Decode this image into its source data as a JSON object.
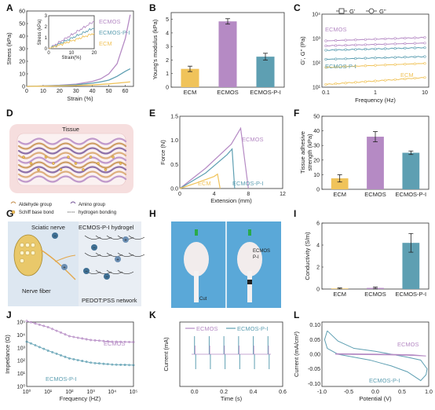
{
  "colors": {
    "ecm": "#f0c35a",
    "ecmos": "#b58ac4",
    "ecmospi": "#5e9fb2",
    "ecmos_light": "#c9a6d4",
    "ecmospi_light": "#7bb6c6"
  },
  "panels": {
    "A": {
      "label": "A"
    },
    "B": {
      "label": "B"
    },
    "C": {
      "label": "C"
    },
    "D": {
      "label": "D"
    },
    "E": {
      "label": "E"
    },
    "F": {
      "label": "F"
    },
    "G": {
      "label": "G"
    },
    "H": {
      "label": "H"
    },
    "I": {
      "label": "I"
    },
    "J": {
      "label": "J"
    },
    "K": {
      "label": "K"
    },
    "L": {
      "label": "L"
    }
  },
  "chart_data": [
    {
      "id": "A",
      "type": "line",
      "xlabel": "Strain (%)",
      "ylabel": "Stress (kPa)",
      "xlim": [
        0,
        65
      ],
      "ylim": [
        0,
        60
      ],
      "xticks": [
        0,
        10,
        20,
        30,
        40,
        50,
        60
      ],
      "yticks": [
        0,
        10,
        20,
        30,
        40,
        50,
        60
      ],
      "series": [
        {
          "name": "ECMOS",
          "x": [
            0,
            10,
            20,
            30,
            40,
            45,
            50,
            55,
            60,
            63
          ],
          "y": [
            0,
            0.4,
            0.9,
            1.8,
            4,
            6,
            10,
            18,
            38,
            57
          ]
        },
        {
          "name": "ECMOS-P-I",
          "x": [
            0,
            10,
            20,
            30,
            40,
            45,
            50,
            55,
            60,
            63
          ],
          "y": [
            0,
            0.3,
            0.7,
            1.3,
            2.6,
            3.6,
            5,
            8,
            12,
            14
          ]
        },
        {
          "name": "ECM",
          "x": [
            0,
            10,
            20,
            30,
            40,
            45,
            50,
            55,
            60,
            63
          ],
          "y": [
            0,
            0.2,
            0.4,
            0.7,
            1.2,
            1.6,
            2.0,
            2.6,
            3.2,
            3.6
          ]
        }
      ],
      "inset": {
        "xlabel": "Strain(%)",
        "ylabel": "Stress (kPa)",
        "xlim": [
          0,
          20
        ],
        "ylim": [
          0,
          3
        ],
        "xticks": [
          0,
          10,
          20
        ],
        "yticks": [
          0,
          1,
          2,
          3
        ],
        "series": [
          {
            "name": "ECMOS",
            "x": [
              0,
              5,
              10,
              15,
              20
            ],
            "y": [
              0,
              0.6,
              1.25,
              1.9,
              2.5
            ]
          },
          {
            "name": "ECMOS-P-I",
            "x": [
              0,
              5,
              10,
              15,
              20
            ],
            "y": [
              0,
              0.45,
              0.95,
              1.45,
              1.9
            ]
          },
          {
            "name": "ECM",
            "x": [
              0,
              5,
              10,
              15,
              20
            ],
            "y": [
              0,
              0.35,
              0.7,
              1.05,
              1.4
            ]
          }
        ]
      },
      "annotations": [
        "ECMOS",
        "ECMOS-P-I",
        "ECM"
      ]
    },
    {
      "id": "B",
      "type": "bar",
      "ylabel": "Young's modulus (kPa)",
      "categories": [
        "ECM",
        "ECMOS",
        "ECMOS-P-I"
      ],
      "values": [
        1.35,
        4.85,
        2.25
      ],
      "errors": [
        0.2,
        0.2,
        0.25
      ],
      "ylim": [
        0,
        5.5
      ],
      "yticks": [
        0,
        1,
        2,
        3,
        4,
        5
      ]
    },
    {
      "id": "C",
      "type": "line",
      "xlabel": "Frequency (Hz)",
      "ylabel": "G', G'' (Pa)",
      "log_x": true,
      "log_y": true,
      "xlim": [
        0.1,
        10
      ],
      "ylim": [
        10,
        10000
      ],
      "xtick_labels": [
        "0.1",
        "1",
        "10"
      ],
      "ytick_labels": [
        "10¹",
        "10²",
        "10³",
        "10⁴"
      ],
      "legend": [
        "G'",
        "G''"
      ],
      "series": [
        {
          "name": "ECMOS",
          "x": [
            0.1,
            1,
            10
          ],
          "y": [
            800,
            900,
            1100
          ]
        },
        {
          "name": "ECMOS",
          "x": [
            0.1,
            1,
            10
          ],
          "y": [
            500,
            560,
            650
          ]
        },
        {
          "name": "ECMOS-P-I",
          "x": [
            0.1,
            1,
            10
          ],
          "y": [
            330,
            370,
            420
          ]
        },
        {
          "name": "ECMOS-P-I",
          "x": [
            0.1,
            1,
            10
          ],
          "y": [
            140,
            160,
            180
          ]
        },
        {
          "name": "ECM",
          "x": [
            0.1,
            1,
            10
          ],
          "y": [
            65,
            80,
            95
          ]
        },
        {
          "name": "ECM",
          "x": [
            0.1,
            1,
            10
          ],
          "y": [
            13,
            18,
            25
          ]
        }
      ],
      "annotations": [
        "ECMOS",
        "ECMOS-P-I",
        "ECM"
      ]
    },
    {
      "id": "E",
      "type": "line",
      "xlabel": "Extension (mm)",
      "ylabel": "Force (N)",
      "xlim": [
        0,
        12
      ],
      "ylim": [
        0,
        1.5
      ],
      "xticks": [
        0,
        4,
        8,
        12
      ],
      "yticks": [
        0.0,
        0.5,
        1.0,
        1.5
      ],
      "series": [
        {
          "name": "ECMOS",
          "x": [
            0,
            3,
            6,
            7.1,
            7.6,
            8.0
          ],
          "y": [
            0,
            0.42,
            0.92,
            1.25,
            0.55,
            0
          ]
        },
        {
          "name": "ECMOS-P-I",
          "x": [
            0,
            3,
            5.5,
            6.1,
            6.4
          ],
          "y": [
            0,
            0.32,
            0.7,
            0.82,
            0
          ]
        },
        {
          "name": "ECM",
          "x": [
            0,
            2,
            4,
            4.4,
            4.7
          ],
          "y": [
            0,
            0.12,
            0.25,
            0.3,
            0
          ]
        }
      ],
      "annotations": [
        "ECMOS",
        "ECMOS-P-I",
        "ECM"
      ]
    },
    {
      "id": "F",
      "type": "bar",
      "ylabel": "Tissue adhesive strength (kPa)",
      "categories": [
        "ECM",
        "ECMOS",
        "ECMOS-P-I"
      ],
      "values": [
        7.5,
        36,
        25
      ],
      "errors": [
        2.5,
        3.5,
        1.2
      ],
      "ylim": [
        0,
        50
      ],
      "yticks": [
        0,
        10,
        20,
        30,
        40,
        50
      ]
    },
    {
      "id": "I",
      "type": "bar",
      "ylabel": "Conductivity (S/m)",
      "categories": [
        "ECM",
        "ECMOS",
        "ECMOS-P-I"
      ],
      "values": [
        0.05,
        0.1,
        4.2
      ],
      "errors": [
        0.05,
        0.08,
        0.85
      ],
      "ylim": [
        0,
        6
      ],
      "yticks": [
        0,
        2,
        4,
        6
      ]
    },
    {
      "id": "J",
      "type": "line",
      "xlabel": "Frequency (HZ)",
      "ylabel": "Impedance (Ω)",
      "log_x": true,
      "log_y": true,
      "xlim": [
        1,
        100000
      ],
      "ylim": [
        1,
        100000
      ],
      "xtick_labels": [
        "10⁰",
        "10¹",
        "10²",
        "10³",
        "10⁴",
        "10⁵"
      ],
      "ytick_labels": [
        "10⁰",
        "10¹",
        "10²",
        "10³",
        "10⁴",
        "10⁵"
      ],
      "series": [
        {
          "name": "ECMOS",
          "x": [
            1,
            10,
            100,
            1000,
            10000,
            100000
          ],
          "y": [
            120000,
            40000,
            8000,
            4000,
            3000,
            2800
          ]
        },
        {
          "name": "ECMOS-P-I",
          "x": [
            1,
            10,
            100,
            1000,
            10000,
            100000
          ],
          "y": [
            3000,
            600,
            150,
            70,
            50,
            45
          ]
        }
      ],
      "annotations": [
        "ECMOS",
        "ECMOS-P-I"
      ]
    },
    {
      "id": "K",
      "type": "line",
      "xlabel": "Time (s)",
      "ylabel": "Current (mA)",
      "xlim": [
        -0.1,
        0.6
      ],
      "xticks": [
        0.0,
        0.2,
        0.4,
        0.6
      ],
      "series": [
        {
          "name": "ECMOS",
          "pulse_times": [
            0.0,
            0.1,
            0.2,
            0.3,
            0.4,
            0.5
          ]
        },
        {
          "name": "ECMOS-P-I",
          "pulse_times": [
            0.0,
            0.1,
            0.2,
            0.3,
            0.4,
            0.5
          ]
        }
      ],
      "legend": [
        "ECMOS",
        "ECMOS-P-I"
      ]
    },
    {
      "id": "L",
      "type": "line",
      "xlabel": "Potential (V)",
      "ylabel": "Current (mA/cm²)",
      "xlim": [
        -1.0,
        1.0
      ],
      "ylim": [
        -0.1,
        0.1
      ],
      "xticks": [
        -1.0,
        -0.5,
        0.0,
        0.5,
        1.0
      ],
      "yticks": [
        -0.1,
        -0.05,
        0.0,
        0.05,
        0.1
      ],
      "series": [
        {
          "name": "ECMOS"
        },
        {
          "name": "ECMOS-P-I"
        }
      ],
      "annotations": [
        "ECMOS",
        "ECMOS-P-I"
      ]
    }
  ],
  "illustrations": {
    "D": {
      "title": "Tissue",
      "legend": [
        "Aldehyde group",
        "Amino group",
        "Schiff base bond",
        "hydrogen bonding"
      ]
    },
    "G": {
      "labels": [
        "Sciatic nerve",
        "ECMOS-P-I hydrogel",
        "Nerve fiber",
        "PEDOT:PSS network"
      ]
    },
    "H": {
      "labels": [
        "ECMOS P-I",
        "Cut"
      ]
    }
  }
}
